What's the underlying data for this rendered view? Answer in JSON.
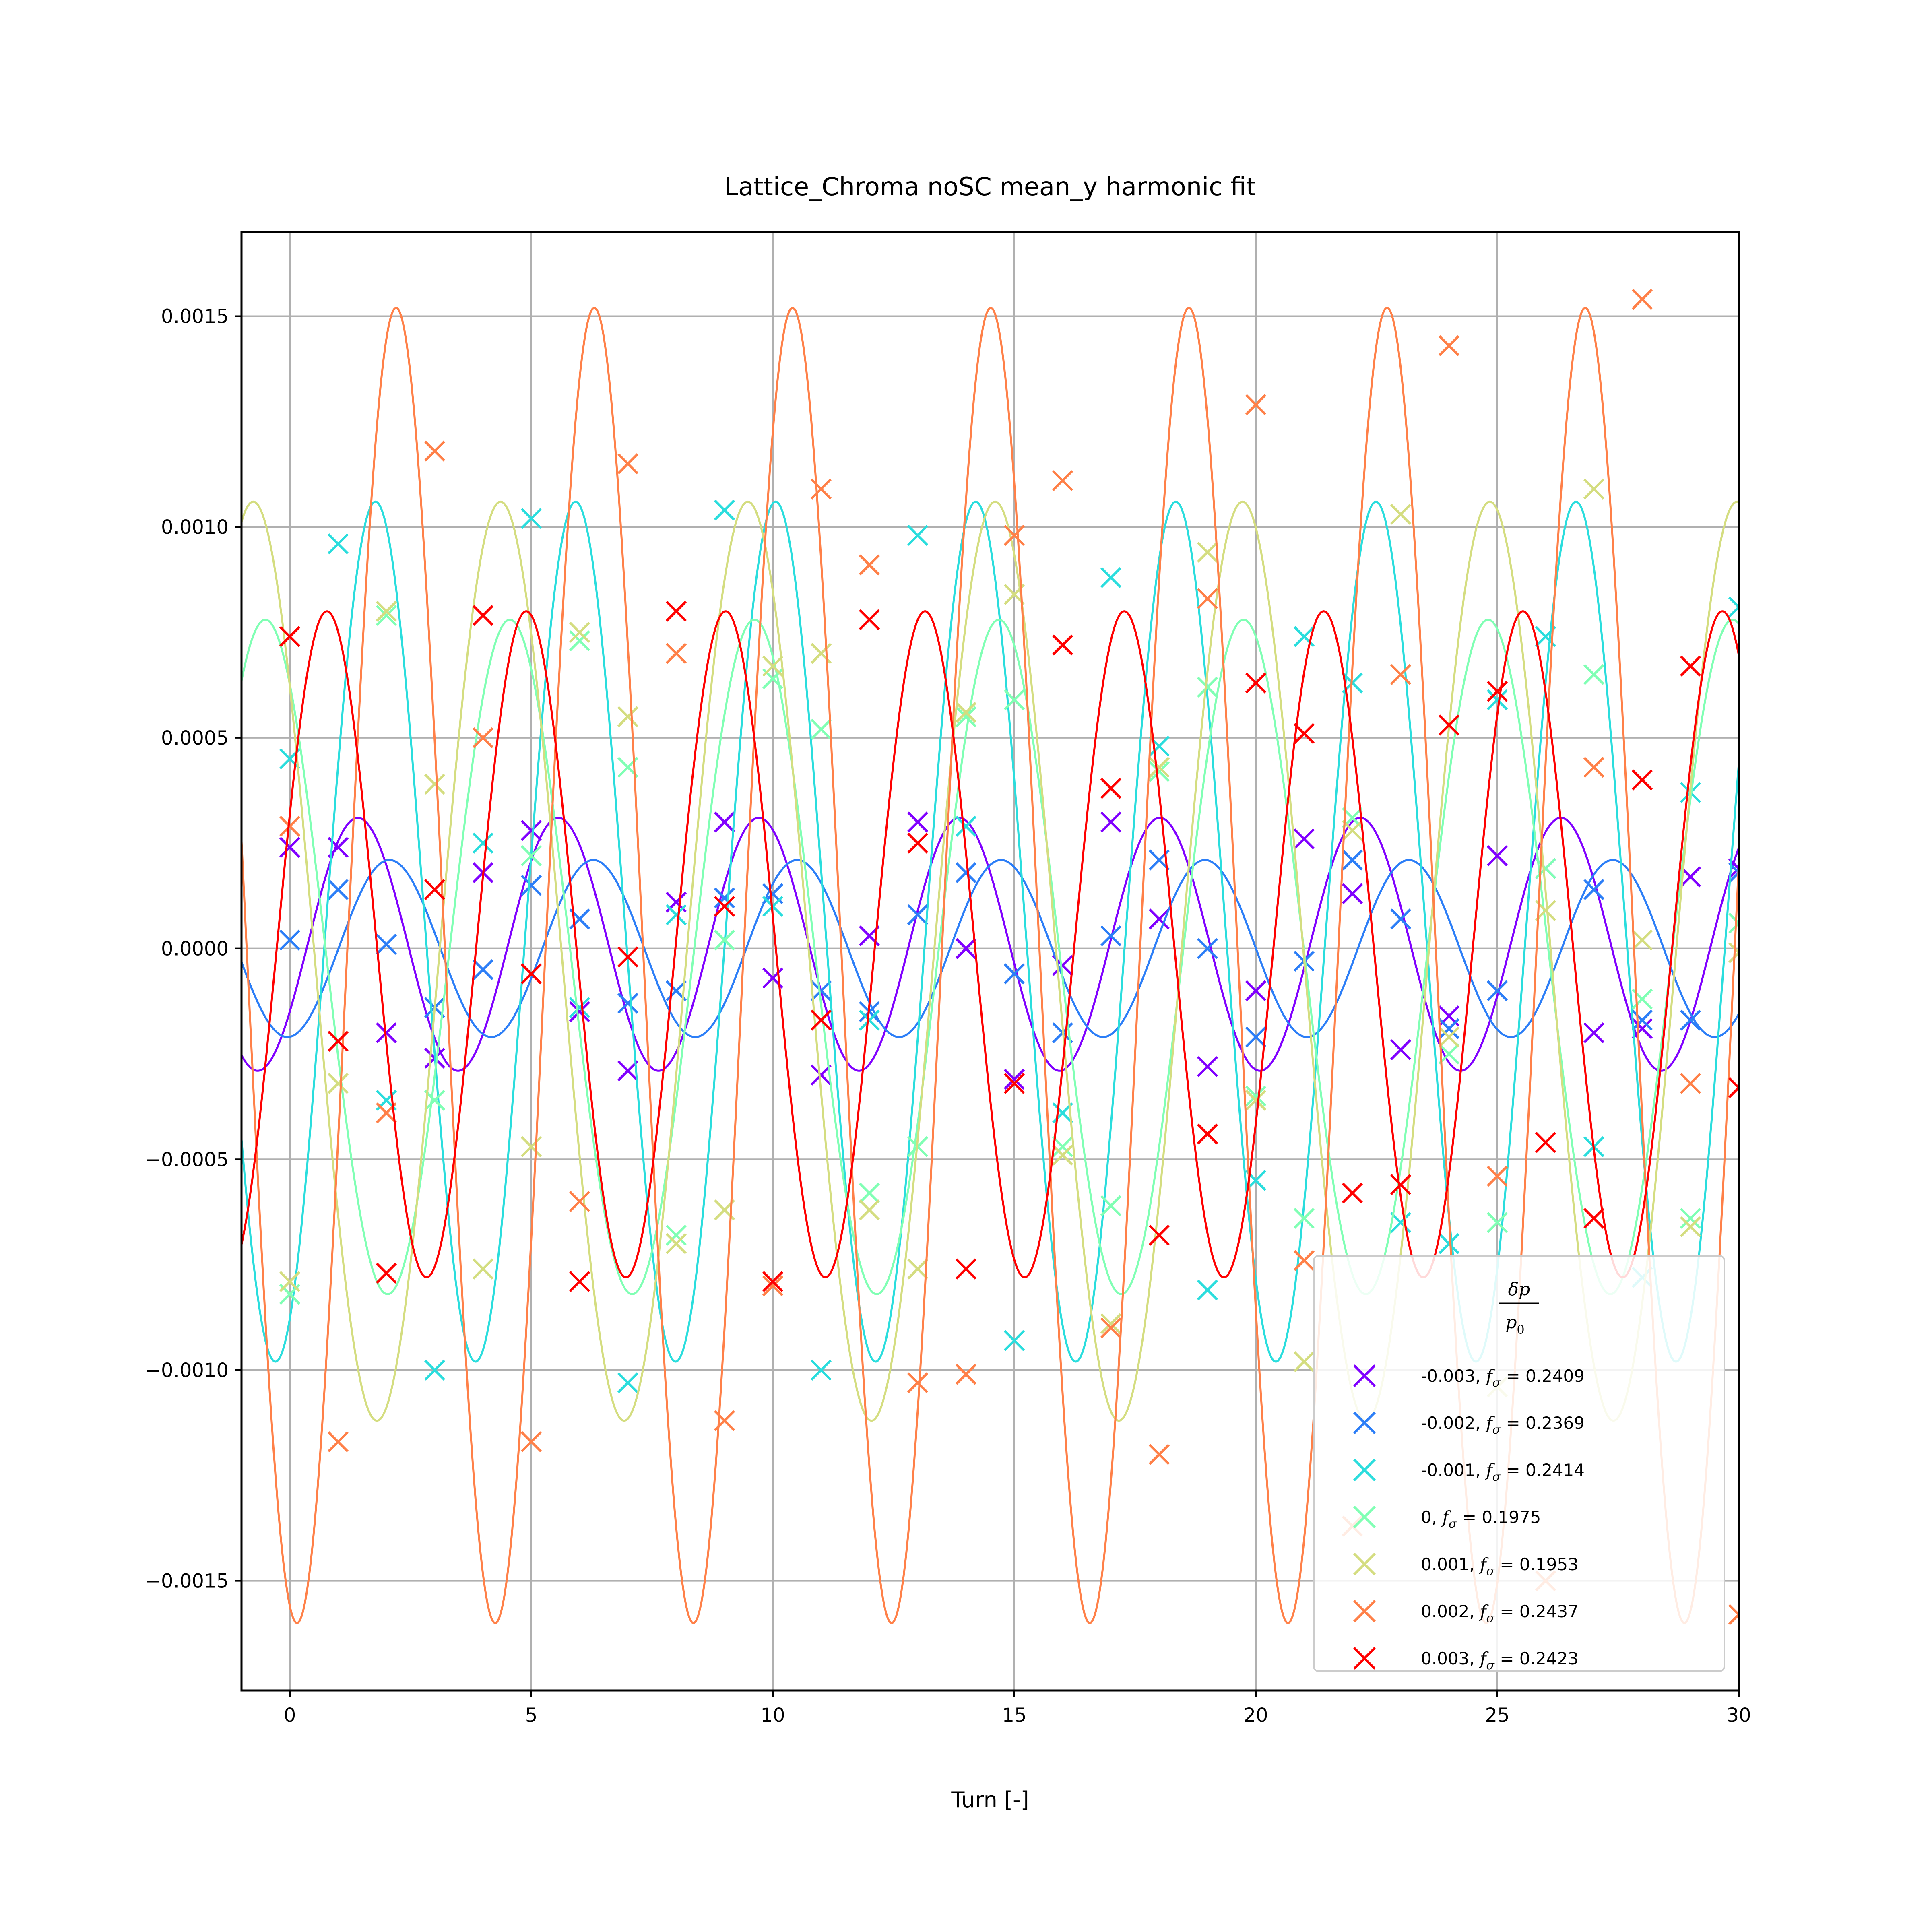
{
  "chart_data": {
    "type": "line",
    "title": "Lattice_Chroma noSC mean_y harmonic fit",
    "xlabel": "Turn [-]",
    "ylabel": "",
    "xlim": [
      -1,
      30
    ],
    "ylim": [
      -0.00176,
      0.0017
    ],
    "xticks": [
      0,
      5,
      10,
      15,
      20,
      25,
      30
    ],
    "yticks": [
      -0.0015,
      -0.001,
      -0.0005,
      0.0,
      0.0005,
      0.001,
      0.0015
    ],
    "ytick_labels": [
      "−0.0015",
      "−0.0010",
      "−0.0005",
      "0.0000",
      "0.0005",
      "0.0010",
      "0.0015"
    ],
    "grid": true,
    "legend": {
      "placement": "lower-right",
      "title_numerator": "δp",
      "title_denominator": "p",
      "title_subscript": "0"
    },
    "series": [
      {
        "name": "-0.003",
        "legend_prefix": "-0.003, ",
        "f_sigma": "0.2409",
        "color": "#8000ff",
        "fit": {
          "amplitude": 0.0003,
          "offset": 1e-05,
          "frequency": 0.2409,
          "phase": -0.56
        },
        "points": [
          0.00024,
          0.00024,
          -0.0002,
          -0.00026,
          0.00018,
          0.00028,
          -0.00015,
          -0.00029,
          0.00011,
          0.0003,
          -7e-05,
          -0.0003,
          3e-05,
          0.0003,
          0.0,
          -0.00031,
          -4e-05,
          0.0003,
          7e-05,
          -0.00028,
          -0.0001,
          0.00026,
          0.00013,
          -0.00024,
          -0.00016,
          0.00022,
          0.00019,
          -0.0002,
          -0.00019,
          0.00017,
          0.00019
        ]
      },
      {
        "name": "-0.002",
        "legend_prefix": "-0.002, ",
        "f_sigma": "0.2369",
        "color": "#2c7ef7",
        "fit": {
          "amplitude": 0.00021,
          "offset": 0.0,
          "frequency": 0.2369,
          "phase": -1.5
        },
        "points": [
          2e-05,
          0.00014,
          1e-05,
          -0.00014,
          -5e-05,
          0.00015,
          7e-05,
          -0.00013,
          -0.0001,
          0.00012,
          0.00013,
          -0.0001,
          -0.00015,
          8e-05,
          0.00018,
          -6e-05,
          -0.0002,
          3e-05,
          0.00021,
          0.0,
          -0.00021,
          -3e-05,
          0.00021,
          7e-05,
          -0.00019,
          -0.0001,
          0.00019,
          0.00014,
          -0.00017,
          -0.00017,
          0.00018
        ]
      },
      {
        "name": "-0.001",
        "legend_prefix": "-0.001, ",
        "f_sigma": "0.2414",
        "color": "#2adddd",
        "fit": {
          "amplitude": 0.00102,
          "offset": 4e-05,
          "frequency": 0.2414,
          "phase": -1.12
        },
        "points": [
          0.00045,
          0.00096,
          -0.00036,
          -0.001,
          0.00025,
          0.00102,
          -0.00014,
          -0.00103,
          8e-05,
          0.00104,
          0.0001,
          -0.001,
          -0.00017,
          0.00098,
          0.00029,
          -0.00093,
          -0.00039,
          0.00088,
          0.00048,
          -0.00081,
          -0.00055,
          0.00074,
          0.00063,
          -0.00065,
          -0.0007,
          0.00059,
          0.00074,
          -0.00047,
          -0.00078,
          0.00037,
          0.00081
        ]
      },
      {
        "name": "0",
        "legend_prefix": "0, ",
        "f_sigma": "0.1975",
        "color": "#80ffb4",
        "fit": {
          "amplitude": 0.0008,
          "offset": -2e-05,
          "frequency": 0.1975,
          "phase": 2.2
        },
        "points": [
          -0.00082,
          -0.00022,
          0.00079,
          -0.00036,
          -0.00076,
          0.00022,
          0.00073,
          0.00043,
          -0.00068,
          2e-05,
          0.00064,
          0.00052,
          -0.00058,
          -0.00047,
          0.00055,
          0.00059,
          -0.00047,
          -0.00061,
          0.00042,
          0.00062,
          -0.00035,
          -0.00064,
          0.00031,
          0.00065,
          -0.00025,
          -0.00065,
          0.00019,
          0.00065,
          -0.00012,
          -0.00064,
          6e-05
        ]
      },
      {
        "name": "0.001",
        "legend_prefix": "0.001, ",
        "f_sigma": "0.1953",
        "color": "#d4dd80",
        "fit": {
          "amplitude": 0.00109,
          "offset": -3e-05,
          "frequency": 0.1953,
          "phase": 2.5
        },
        "points": [
          -0.00079,
          -0.00032,
          0.0008,
          0.00039,
          -0.00076,
          -0.00047,
          0.00075,
          0.00055,
          -0.0007,
          -0.00062,
          0.00067,
          0.0007,
          -0.00062,
          -0.00076,
          0.00056,
          0.00084,
          -0.00049,
          -0.00089,
          0.00043,
          0.00094,
          -0.00036,
          -0.00098,
          0.00028,
          0.00103,
          -0.00021,
          -0.00104,
          9e-05,
          0.00109,
          2e-05,
          -0.00066,
          -1e-05
        ]
      },
      {
        "name": "0.002",
        "legend_prefix": "0.002, ",
        "f_sigma": "0.2437",
        "color": "#ff8048",
        "fit": {
          "amplitude": 0.00156,
          "offset": -4e-05,
          "frequency": 0.2437,
          "phase": -1.8
        },
        "points": [
          0.00029,
          -0.00117,
          -0.00039,
          0.00118,
          0.0005,
          -0.00117,
          -0.0006,
          0.00115,
          0.0007,
          -0.00112,
          -0.0008,
          0.00109,
          0.00091,
          -0.00103,
          -0.00101,
          0.00098,
          0.00111,
          -0.0009,
          -0.0012,
          0.00083,
          0.00129,
          -0.00074,
          -0.00137,
          0.00065,
          0.00143,
          -0.00054,
          -0.0015,
          0.00043,
          0.00154,
          -0.00032,
          -0.00158
        ]
      },
      {
        "name": "0.003",
        "legend_prefix": "0.003, ",
        "f_sigma": "0.2423",
        "color": "#ff0000",
        "fit": {
          "amplitude": 0.00079,
          "offset": 1e-05,
          "frequency": 0.2423,
          "phase": 0.4
        },
        "points": [
          0.00074,
          -0.00022,
          -0.00077,
          0.00014,
          0.00079,
          -6e-05,
          -0.00079,
          -2e-05,
          0.0008,
          0.0001,
          -0.00079,
          -0.00017,
          0.00078,
          0.00025,
          -0.00076,
          -0.00032,
          0.00072,
          0.00038,
          -0.00068,
          -0.00044,
          0.00063,
          0.00051,
          -0.00058,
          -0.00056,
          0.00053,
          0.00061,
          -0.00046,
          -0.00064,
          0.0004,
          0.00067,
          -0.00033
        ]
      }
    ]
  }
}
